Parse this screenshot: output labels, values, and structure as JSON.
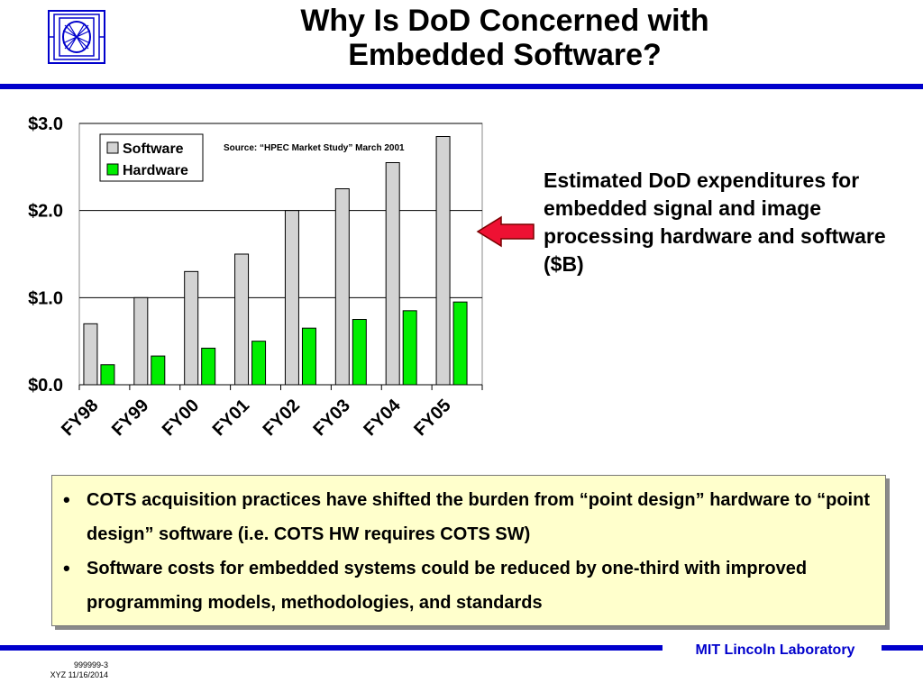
{
  "title": {
    "line1": "Why Is DoD Concerned with",
    "line2": "Embedded Software?"
  },
  "logo": {
    "icon": "mit-ll-logo-icon",
    "color": "#0000cc"
  },
  "description": "Estimated DoD expenditures for embedded signal and image processing hardware and software ($B)",
  "arrow": {
    "icon": "left-arrow-icon",
    "color": "#ee1133"
  },
  "chart_data": {
    "type": "bar",
    "categories": [
      "FY98",
      "FY99",
      "FY00",
      "FY01",
      "FY02",
      "FY03",
      "FY04",
      "FY05"
    ],
    "series": [
      {
        "name": "Software",
        "values": [
          0.7,
          1.0,
          1.3,
          1.5,
          2.0,
          2.25,
          2.55,
          2.85
        ],
        "color": "#d3d3d3"
      },
      {
        "name": "Hardware",
        "values": [
          0.23,
          0.33,
          0.42,
          0.5,
          0.65,
          0.75,
          0.85,
          0.95
        ],
        "color": "#00ee00"
      }
    ],
    "yticks": [
      "$0.0",
      "$1.0",
      "$2.0",
      "$3.0"
    ],
    "ylim": [
      0,
      3
    ],
    "grid": true,
    "legend": "top-left",
    "annotation": "Source: “HPEC Market Study” March 2001",
    "xlabel": "",
    "ylabel": ""
  },
  "notes": [
    "COTS acquisition practices have shifted the burden from “point design” hardware to “point design” software (i.e. COTS HW requires COTS SW)",
    "Software costs for embedded systems could be reduced by one-third with improved programming models, methodologies, and standards"
  ],
  "bullet": "•",
  "footer": {
    "lab": "MIT Lincoln Laboratory",
    "code": "999999-3",
    "date": "XYZ 11/16/2014"
  }
}
